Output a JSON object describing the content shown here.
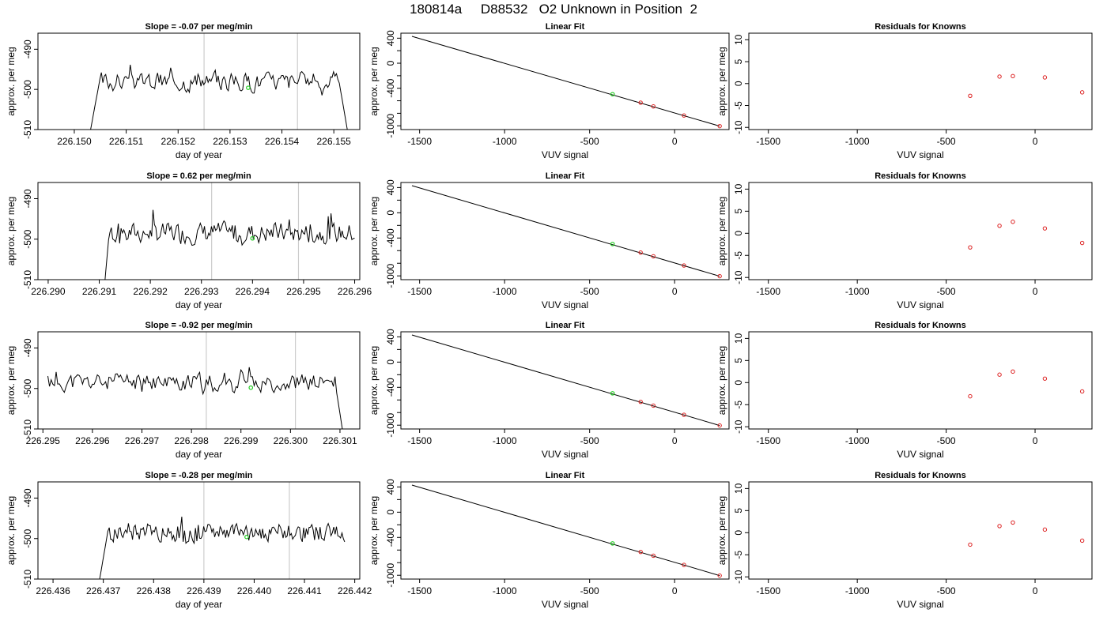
{
  "page": {
    "title": "180814a     D88532   O2 Unknown in Position  2"
  },
  "colors": {
    "line": "#000000",
    "known_points": "#dd2222",
    "unknown_point": "#22cc22",
    "marker_lines": "#cccccc"
  },
  "chart_data": [
    {
      "type": "line",
      "row": 0,
      "column": "timeseries",
      "title": "Slope =  -0.07  per meg/min",
      "xlabel": "day of year",
      "ylabel": "approx. per meg",
      "xlim": [
        226.1493,
        226.1555
      ],
      "ylim": [
        -510,
        -486
      ],
      "xticks": [
        226.15,
        226.151,
        226.152,
        226.153,
        226.154,
        226.155
      ],
      "xtick_labels": [
        "226.150",
        "226.151",
        "226.152",
        "226.153",
        "226.154",
        "226.155"
      ],
      "yticks": [
        -490,
        -500,
        -510
      ],
      "ytick_labels": [
        "-490",
        "-500",
        "-510"
      ],
      "vlines": [
        226.1525,
        226.1543
      ],
      "x_start": 226.1503,
      "x_end": 226.1553,
      "mean": -498,
      "amplitude": 3.2,
      "ramp_start": -511,
      "ramp_end_x": 226.1505,
      "drop_x": 226.1551,
      "drop_to": -513,
      "seed": 3,
      "unknown_point": {
        "x": 226.15335,
        "y": -499.6
      }
    },
    {
      "type": "line",
      "row": 1,
      "column": "timeseries",
      "title": "Slope =  0.62  per meg/min",
      "xlabel": "day of year",
      "ylabel": "approx. per meg",
      "xlim": [
        226.2898,
        226.2961
      ],
      "ylim": [
        -510,
        -486
      ],
      "xticks": [
        226.29,
        226.291,
        226.292,
        226.293,
        226.294,
        226.295,
        226.296
      ],
      "xtick_labels": [
        "226.290",
        "226.291",
        "226.292",
        "226.293",
        "226.294",
        "226.295",
        "226.296"
      ],
      "yticks": [
        -490,
        -500,
        -510
      ],
      "ytick_labels": [
        "-490",
        "-500",
        "-510"
      ],
      "vlines": [
        226.2932,
        226.2949
      ],
      "x_start": 226.2911,
      "x_end": 226.296,
      "mean": -498.5,
      "amplitude": 3.5,
      "ramp_start": -512,
      "ramp_end_x": 226.2912,
      "drop_x": null,
      "drop_to": null,
      "seed": 7,
      "unknown_point": {
        "x": 226.294,
        "y": -499.8
      }
    },
    {
      "type": "line",
      "row": 2,
      "column": "timeseries",
      "title": "Slope =  -0.92  per meg/min",
      "xlabel": "day of year",
      "ylabel": "approx. per meg",
      "xlim": [
        226.2949,
        226.3014
      ],
      "ylim": [
        -510,
        -486
      ],
      "xticks": [
        226.295,
        226.296,
        226.297,
        226.298,
        226.299,
        226.3,
        226.301
      ],
      "xtick_labels": [
        "226.295",
        "226.296",
        "226.297",
        "226.298",
        "226.299",
        "226.300",
        "226.301"
      ],
      "yticks": [
        -490,
        -500,
        -510
      ],
      "ytick_labels": [
        "-490",
        "-500",
        "-510"
      ],
      "vlines": [
        226.2983,
        226.3001
      ],
      "x_start": 226.2951,
      "x_end": 226.3011,
      "mean": -498.5,
      "amplitude": 3.0,
      "ramp_start": null,
      "ramp_end_x": null,
      "drop_x": 226.3009,
      "drop_to": -514,
      "seed": 11,
      "unknown_point": {
        "x": 226.2992,
        "y": -499.8
      }
    },
    {
      "type": "line",
      "row": 3,
      "column": "timeseries",
      "title": "Slope =  -0.28  per meg/min",
      "xlabel": "day of year",
      "ylabel": "approx. per meg",
      "xlim": [
        226.4357,
        226.4421
      ],
      "ylim": [
        -510,
        -486
      ],
      "xticks": [
        226.436,
        226.437,
        226.438,
        226.439,
        226.44,
        226.441,
        226.442
      ],
      "xtick_labels": [
        "226.436",
        "226.437",
        "226.438",
        "226.439",
        "226.440",
        "226.441",
        "226.442"
      ],
      "yticks": [
        -490,
        -500,
        -510
      ],
      "ytick_labels": [
        "-490",
        "-500",
        "-510"
      ],
      "vlines": [
        226.439,
        226.4407
      ],
      "x_start": 226.4369,
      "x_end": 226.4418,
      "mean": -498.5,
      "amplitude": 3.2,
      "ramp_start": -512,
      "ramp_end_x": 226.4371,
      "drop_x": null,
      "drop_to": null,
      "seed": 19,
      "unknown_point": {
        "x": 226.43985,
        "y": -499.6
      }
    },
    {
      "type": "scatter",
      "row": 0,
      "column": "fit",
      "title": "Linear Fit",
      "xlabel": "VUV signal",
      "ylabel": "approx. per meg",
      "xlim": [
        -1610,
        320
      ],
      "ylim": [
        -1060,
        480
      ],
      "xticks": [
        -1500,
        -1000,
        -500,
        0
      ],
      "xtick_labels": [
        "-1500",
        "-1000",
        "-500",
        "0"
      ],
      "yticks": [
        400,
        200,
        0,
        -200,
        -400,
        -600,
        -800,
        -1000
      ],
      "ytick_labels": [
        "400",
        "",
        "0",
        "",
        "-400",
        "",
        "",
        "-1000"
      ],
      "line": {
        "x1": -1545,
        "y1": 430,
        "x2": 265,
        "y2": -1005
      },
      "known_points": {
        "x": [
          -200,
          -125,
          55,
          265
        ],
        "y": [
          -630,
          -690,
          -835,
          -1005
        ]
      },
      "unknown_point": {
        "x": -365,
        "y": -495
      }
    },
    {
      "type": "scatter",
      "row": 1,
      "column": "fit",
      "title": "Linear Fit",
      "xlabel": "VUV signal",
      "ylabel": "approx. per meg",
      "xlim": [
        -1610,
        320
      ],
      "ylim": [
        -1060,
        480
      ],
      "xticks": [
        -1500,
        -1000,
        -500,
        0
      ],
      "xtick_labels": [
        "-1500",
        "-1000",
        "-500",
        "0"
      ],
      "yticks": [
        400,
        200,
        0,
        -200,
        -400,
        -600,
        -800,
        -1000
      ],
      "ytick_labels": [
        "400",
        "",
        "0",
        "",
        "-400",
        "",
        "",
        "-1000"
      ],
      "line": {
        "x1": -1545,
        "y1": 430,
        "x2": 265,
        "y2": -1005
      },
      "known_points": {
        "x": [
          -200,
          -125,
          55,
          265
        ],
        "y": [
          -630,
          -690,
          -835,
          -1005
        ]
      },
      "unknown_point": {
        "x": -365,
        "y": -495
      }
    },
    {
      "type": "scatter",
      "row": 2,
      "column": "fit",
      "title": "Linear Fit",
      "xlabel": "VUV signal",
      "ylabel": "approx. per meg",
      "xlim": [
        -1610,
        320
      ],
      "ylim": [
        -1060,
        480
      ],
      "xticks": [
        -1500,
        -1000,
        -500,
        0
      ],
      "xtick_labels": [
        "-1500",
        "-1000",
        "-500",
        "0"
      ],
      "yticks": [
        400,
        200,
        0,
        -200,
        -400,
        -600,
        -800,
        -1000
      ],
      "ytick_labels": [
        "400",
        "",
        "0",
        "",
        "-400",
        "",
        "",
        "-1000"
      ],
      "line": {
        "x1": -1545,
        "y1": 430,
        "x2": 265,
        "y2": -1005
      },
      "known_points": {
        "x": [
          -200,
          -125,
          55,
          265
        ],
        "y": [
          -630,
          -690,
          -835,
          -1005
        ]
      },
      "unknown_point": {
        "x": -365,
        "y": -495
      }
    },
    {
      "type": "scatter",
      "row": 3,
      "column": "fit",
      "title": "Linear Fit",
      "xlabel": "VUV signal",
      "ylabel": "approx. per meg",
      "xlim": [
        -1610,
        320
      ],
      "ylim": [
        -1060,
        480
      ],
      "xticks": [
        -1500,
        -1000,
        -500,
        0
      ],
      "xtick_labels": [
        "-1500",
        "-1000",
        "-500",
        "0"
      ],
      "yticks": [
        400,
        200,
        0,
        -200,
        -400,
        -600,
        -800,
        -1000
      ],
      "ytick_labels": [
        "400",
        "",
        "0",
        "",
        "-400",
        "",
        "",
        "-1000"
      ],
      "line": {
        "x1": -1545,
        "y1": 430,
        "x2": 265,
        "y2": -1005
      },
      "known_points": {
        "x": [
          -200,
          -125,
          55,
          265
        ],
        "y": [
          -630,
          -690,
          -835,
          -1005
        ]
      },
      "unknown_point": {
        "x": -365,
        "y": -495
      }
    },
    {
      "type": "scatter",
      "row": 0,
      "column": "residuals",
      "title": "Residuals for Knowns",
      "xlabel": "VUV signal",
      "ylabel": "approx. per meg",
      "xlim": [
        -1610,
        320
      ],
      "ylim": [
        -10.5,
        11.5
      ],
      "xticks": [
        -1500,
        -1000,
        -500,
        0
      ],
      "xtick_labels": [
        "-1500",
        "-1000",
        "-500",
        "0"
      ],
      "yticks": [
        10,
        5,
        0,
        -5,
        -10
      ],
      "ytick_labels": [
        "10",
        "5",
        "0",
        "-5",
        "-10"
      ],
      "known_points": {
        "x": [
          -365,
          -200,
          -125,
          55,
          265
        ],
        "y": [
          -2.8,
          1.6,
          1.7,
          1.4,
          -2.0
        ]
      }
    },
    {
      "type": "scatter",
      "row": 1,
      "column": "residuals",
      "title": "Residuals for Knowns",
      "xlabel": "VUV signal",
      "ylabel": "approx. per meg",
      "xlim": [
        -1610,
        320
      ],
      "ylim": [
        -10.5,
        11.5
      ],
      "xticks": [
        -1500,
        -1000,
        -500,
        0
      ],
      "xtick_labels": [
        "-1500",
        "-1000",
        "-500",
        "0"
      ],
      "yticks": [
        10,
        5,
        0,
        -5,
        -10
      ],
      "ytick_labels": [
        "10",
        "5",
        "0",
        "-5",
        "-10"
      ],
      "known_points": {
        "x": [
          -365,
          -200,
          -125,
          55,
          265
        ],
        "y": [
          -3.2,
          1.7,
          2.6,
          1.1,
          -2.2
        ]
      }
    },
    {
      "type": "scatter",
      "row": 2,
      "column": "residuals",
      "title": "Residuals for Knowns",
      "xlabel": "VUV signal",
      "ylabel": "approx. per meg",
      "xlim": [
        -1610,
        320
      ],
      "ylim": [
        -10.5,
        11.5
      ],
      "xticks": [
        -1500,
        -1000,
        -500,
        0
      ],
      "xtick_labels": [
        "-1500",
        "-1000",
        "-500",
        "0"
      ],
      "yticks": [
        10,
        5,
        0,
        -5,
        -10
      ],
      "ytick_labels": [
        "10",
        "5",
        "0",
        "-5",
        "-10"
      ],
      "known_points": {
        "x": [
          -365,
          -200,
          -125,
          55,
          265
        ],
        "y": [
          -3.1,
          1.8,
          2.5,
          0.9,
          -2.0
        ]
      }
    },
    {
      "type": "scatter",
      "row": 3,
      "column": "residuals",
      "title": "Residuals for Knowns",
      "xlabel": "VUV signal",
      "ylabel": "approx. per meg",
      "xlim": [
        -1610,
        320
      ],
      "ylim": [
        -10.5,
        11.5
      ],
      "xticks": [
        -1500,
        -1000,
        -500,
        0
      ],
      "xtick_labels": [
        "-1500",
        "-1000",
        "-500",
        "0"
      ],
      "yticks": [
        10,
        5,
        0,
        -5,
        -10
      ],
      "ytick_labels": [
        "10",
        "5",
        "0",
        "-5",
        "-10"
      ],
      "known_points": {
        "x": [
          -365,
          -200,
          -125,
          55,
          265
        ],
        "y": [
          -2.7,
          1.5,
          2.3,
          0.7,
          -1.8
        ]
      }
    }
  ]
}
